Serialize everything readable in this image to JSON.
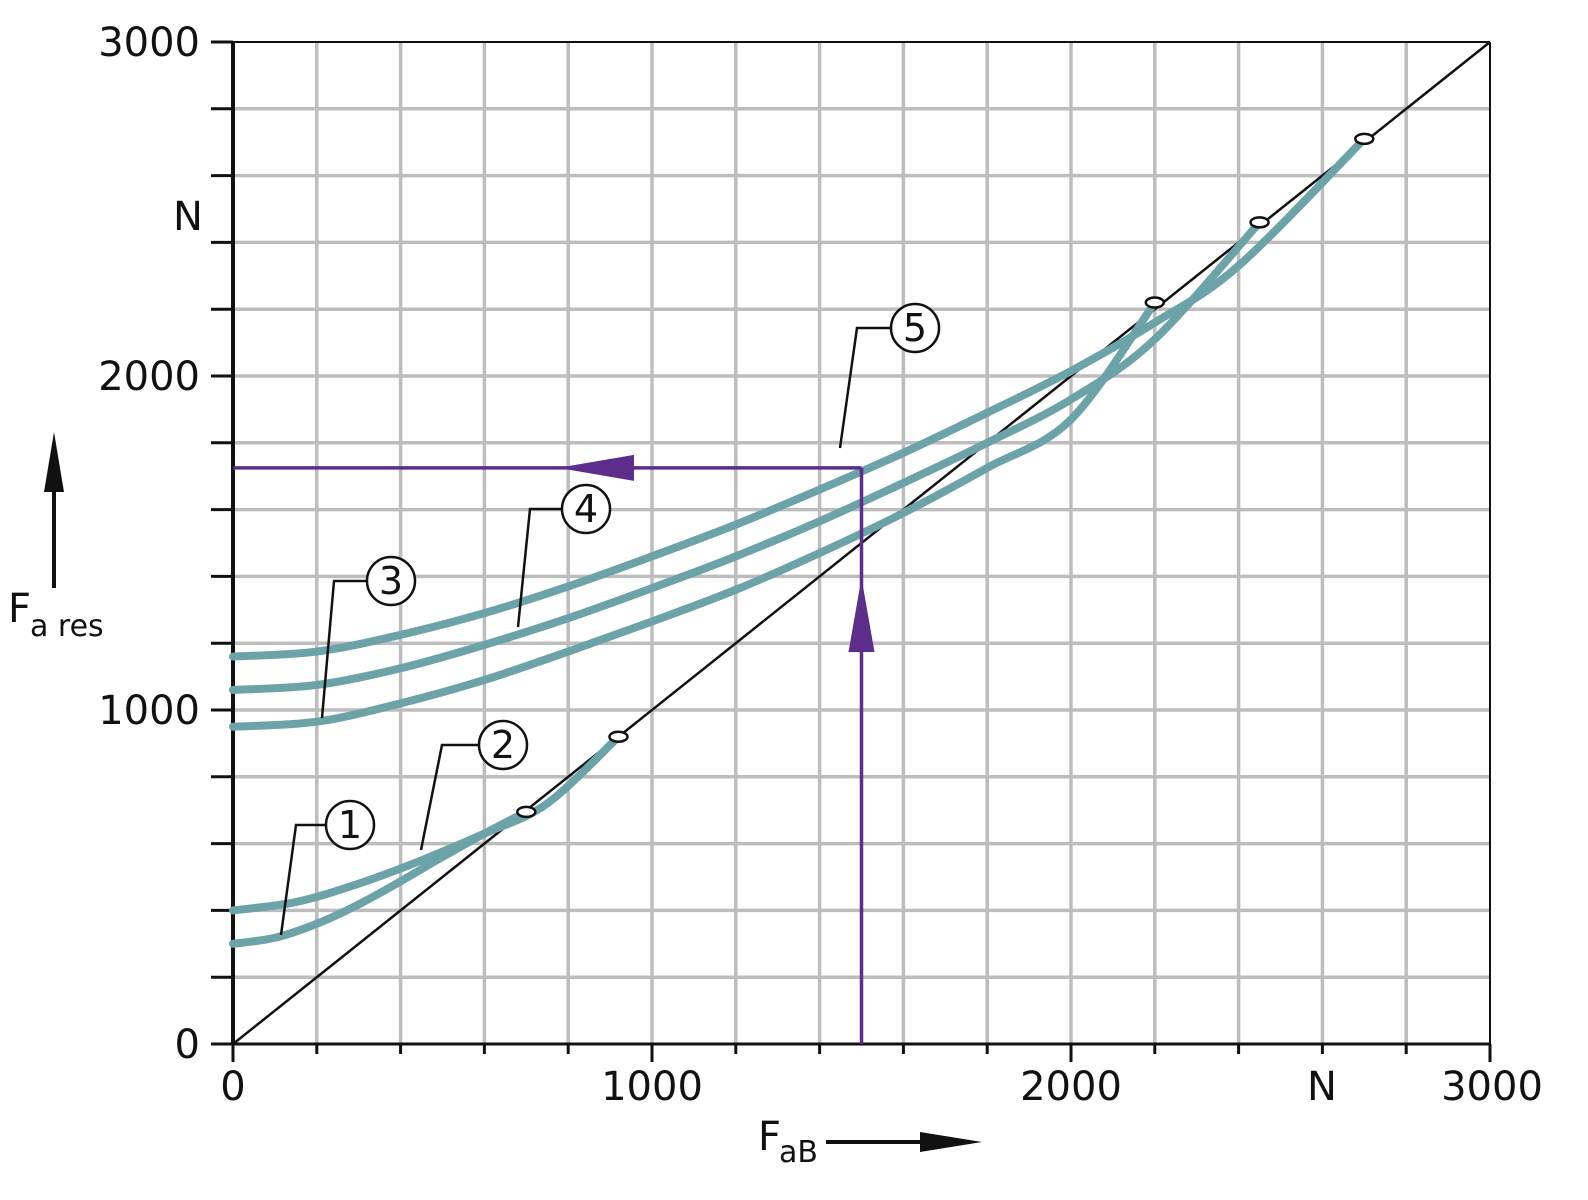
{
  "chart_data": {
    "type": "line",
    "xlabel": {
      "main": "F",
      "sub": "aB"
    },
    "ylabel": {
      "main": "F",
      "sub": "a res"
    },
    "xunit": "N",
    "yunit": "N",
    "xlim": [
      0,
      3000
    ],
    "ylim": [
      0,
      3000
    ],
    "x_tick_labels": [
      "0",
      "1000",
      "2000",
      "3000"
    ],
    "y_tick_labels": [
      "0",
      "1000",
      "2000",
      "3000"
    ],
    "grid": true,
    "series": [
      {
        "label": "1",
        "x": [
          0,
          100,
          200,
          300,
          400,
          500,
          600,
          700
        ],
        "y": [
          300,
          318,
          360,
          418,
          487,
          560,
          630,
          695
        ]
      },
      {
        "label": "2",
        "x": [
          0,
          150,
          300,
          450,
          600,
          750,
          920
        ],
        "y": [
          400,
          425,
          480,
          550,
          630,
          720,
          920
        ]
      },
      {
        "label": "3",
        "x": [
          0,
          200,
          400,
          600,
          800,
          1000,
          1200,
          1400,
          1600,
          1800,
          2000,
          2200
        ],
        "y": [
          950,
          965,
          1020,
          1090,
          1175,
          1265,
          1360,
          1470,
          1590,
          1725,
          1870,
          2220
        ]
      },
      {
        "label": "4",
        "x": [
          0,
          200,
          400,
          600,
          800,
          1000,
          1200,
          1400,
          1600,
          1800,
          2000,
          2200,
          2450
        ],
        "y": [
          1060,
          1075,
          1125,
          1195,
          1275,
          1365,
          1460,
          1565,
          1680,
          1800,
          1930,
          2110,
          2460
        ]
      },
      {
        "label": "5",
        "x": [
          0,
          200,
          400,
          600,
          800,
          1000,
          1200,
          1400,
          1600,
          1800,
          2000,
          2200,
          2400,
          2700
        ],
        "y": [
          1160,
          1175,
          1225,
          1290,
          1370,
          1460,
          1555,
          1660,
          1770,
          1890,
          2015,
          2160,
          2330,
          2710
        ]
      }
    ],
    "reference_line": {
      "x": [
        0,
        3000
      ],
      "y": [
        0,
        3000
      ]
    },
    "example": {
      "x": 1500,
      "y": 1725
    },
    "colors": {
      "curve": "#6ba3a8",
      "example": "#5c2d8a",
      "grid": "#bdbdbd",
      "axis": "#111111"
    }
  }
}
